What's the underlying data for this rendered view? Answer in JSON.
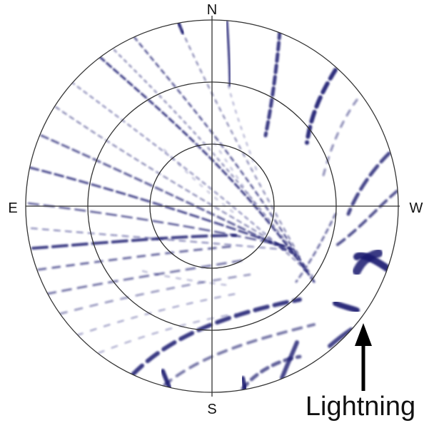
{
  "compass": {
    "north": "N",
    "south": "S",
    "east": "E",
    "west": "W"
  },
  "annotation": {
    "text": "Lightning"
  },
  "colors": {
    "streak": "#1a1a6e",
    "ring": "#333333",
    "arrow": "#000000"
  }
}
